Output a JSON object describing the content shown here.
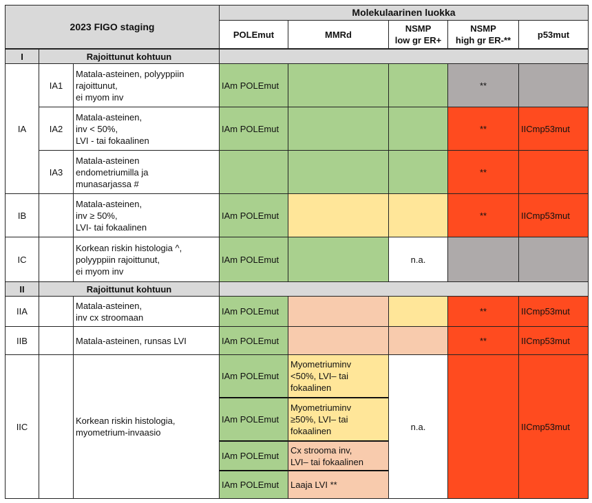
{
  "header": {
    "figo": "2023 FIGO staging",
    "molecular": "Molekulaarinen luokka",
    "cols": [
      "POLEmut",
      "MMRd",
      "NSMP\nlow gr ER+",
      "NSMP\nhigh gr ER-**",
      "p53mut"
    ]
  },
  "sections": [
    {
      "roman": "I",
      "label": "Rajoittunut kohtuun"
    },
    {
      "roman": "II",
      "label": "Rajoittunut kohtuun"
    }
  ],
  "stages": {
    "IA": "IA",
    "IB": "IB",
    "IC": "IC",
    "IIA": "IIA",
    "IIB": "IIB",
    "IIC": "IIC",
    "IA1": "IA1",
    "IA2": "IA2",
    "IA3": "IA3"
  },
  "descriptions": {
    "IA1": "Matala-asteinen, polyyppiin\nrajoittunut,\nei myom inv",
    "IA2": "Matala-asteinen,\ninv < 50%,\nLVI - tai fokaalinen",
    "IA3": "Matala-asteinen\nendometriumilla ja\nmunasarjassa #",
    "IB": "Matala-asteinen,\ninv ≥ 50%,\nLVI- tai fokaalinen",
    "IC": "Korkean riskin histologia ^,\npolyyppiin rajoittunut,\nei myom inv",
    "IIA": "Matala-asteinen,\ninv cx stroomaan",
    "IIB": "Matala-asteinen, runsas LVI",
    "IIC": "Korkean riskin histologia,\nmyometrium-invaasio"
  },
  "values": {
    "polemut": "IAm POLEmut",
    "star": "**",
    "p53": "IICmp53mut",
    "na": "n.a."
  },
  "iic_mmrd": [
    "Myometriuminv\n<50%, LVI– tai\nfokaalinen",
    "Myometriuminv\n≥50%, LVI– tai\nfokaalinen",
    "Cx strooma inv,\nLVI– tai fokaalinen",
    "Laaja LVI **"
  ],
  "colors": {
    "green": "#a9d08e",
    "yellow": "#ffe699",
    "peach": "#f8cbad",
    "red": "#ff4b1f",
    "grey": "#aeaaaa",
    "light_grey": "#d9d9d9"
  }
}
